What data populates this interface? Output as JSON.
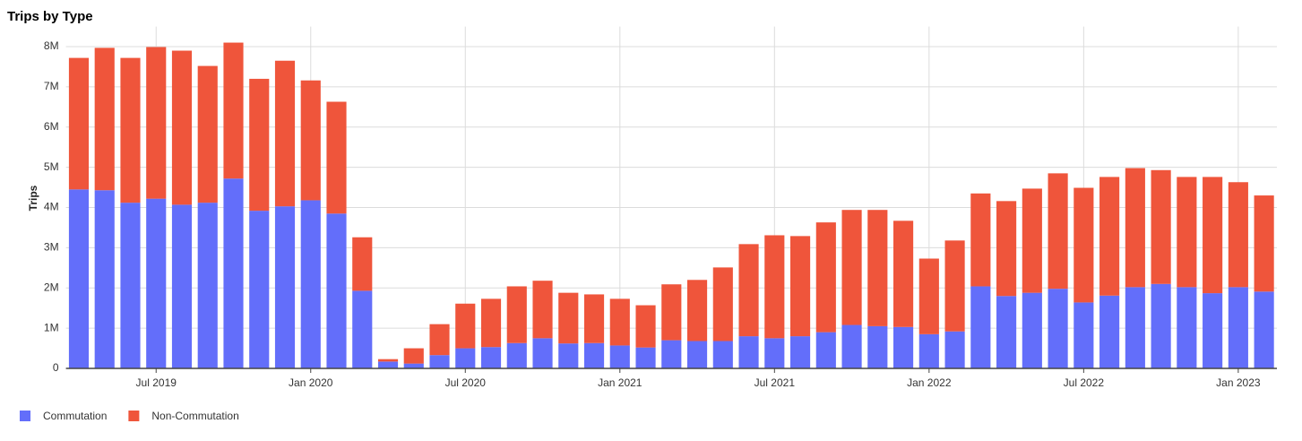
{
  "chart_data": {
    "type": "stacked_bar",
    "title": "Trips by Type",
    "y_label": "Trips",
    "categories": [
      null,
      null,
      null,
      "Jul 2019",
      null,
      null,
      null,
      null,
      null,
      "Jan 2020",
      null,
      null,
      null,
      null,
      null,
      "Jul 2020",
      null,
      null,
      null,
      null,
      null,
      "Jan 2021",
      null,
      null,
      null,
      null,
      null,
      "Jul 2021",
      null,
      null,
      null,
      null,
      null,
      "Jan 2022",
      null,
      null,
      null,
      null,
      null,
      "Jul 2022",
      null,
      null,
      null,
      null,
      null,
      "Jan 2023",
      null
    ],
    "series": [
      {
        "name": "Commutation",
        "color": "#636efa",
        "values": [
          4450000,
          4430000,
          4120000,
          4220000,
          4070000,
          4120000,
          4720000,
          3920000,
          4030000,
          4180000,
          3850000,
          1930000,
          170000,
          120000,
          330000,
          500000,
          530000,
          630000,
          750000,
          620000,
          630000,
          570000,
          520000,
          700000,
          680000,
          680000,
          800000,
          750000,
          800000,
          900000,
          1080000,
          1050000,
          1030000,
          850000,
          920000,
          2040000,
          1800000,
          1880000,
          1980000,
          1640000,
          1810000,
          2020000,
          2100000,
          2020000,
          1870000,
          2020000,
          1910000
        ]
      },
      {
        "name": "Non-Commutation",
        "color": "#ef553b",
        "values": [
          3270000,
          3540000,
          3600000,
          3770000,
          3830000,
          3400000,
          3380000,
          3280000,
          3620000,
          2980000,
          2780000,
          1330000,
          60000,
          380000,
          770000,
          1110000,
          1200000,
          1410000,
          1430000,
          1260000,
          1210000,
          1160000,
          1050000,
          1390000,
          1520000,
          1830000,
          2290000,
          2560000,
          2490000,
          2730000,
          2860000,
          2890000,
          2640000,
          1880000,
          2260000,
          2310000,
          2360000,
          2590000,
          2870000,
          2850000,
          2950000,
          2960000,
          2830000,
          2740000,
          2890000,
          2610000,
          2390000
        ]
      }
    ],
    "ylim": [
      0,
      8500000
    ],
    "yticks": [
      0,
      {
        "value": 1000000,
        "label": "1M"
      },
      {
        "value": 2000000,
        "label": "2M"
      },
      {
        "value": 3000000,
        "label": "3M"
      },
      {
        "value": 4000000,
        "label": "4M"
      },
      {
        "value": 5000000,
        "label": "5M"
      },
      {
        "value": 6000000,
        "label": "6M"
      },
      {
        "value": 7000000,
        "label": "7M"
      },
      {
        "value": 8000000,
        "label": "8M"
      }
    ],
    "grid": true,
    "legend": "bottom-left"
  }
}
